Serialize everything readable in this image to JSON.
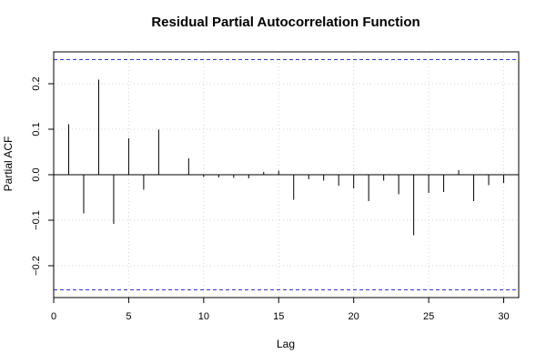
{
  "chart_data": {
    "type": "bar",
    "title": "Residual Partial Autocorrelation Function",
    "xlabel": "Lag",
    "ylabel": "Partial ACF",
    "xlim": [
      0,
      31
    ],
    "ylim": [
      -0.27,
      0.27
    ],
    "xticks": [
      0,
      5,
      10,
      15,
      20,
      25,
      30
    ],
    "yticks": [
      -0.2,
      -0.1,
      0.0,
      0.1,
      0.2
    ],
    "xtick_labels": [
      "0",
      "5",
      "10",
      "15",
      "20",
      "25",
      "30"
    ],
    "ytick_labels": [
      "−0.2",
      "−0.1",
      "0.0",
      "0.1",
      "0.2"
    ],
    "grid": true,
    "confidence_bounds": [
      0.253,
      -0.253
    ],
    "bound_color": "#3333cc",
    "lags": [
      1,
      2,
      3,
      4,
      5,
      6,
      7,
      8,
      9,
      10,
      11,
      12,
      13,
      14,
      15,
      16,
      17,
      18,
      19,
      20,
      21,
      22,
      23,
      24,
      25,
      26,
      27,
      28,
      29,
      30
    ],
    "values": [
      0.111,
      -0.085,
      0.209,
      -0.108,
      0.08,
      -0.033,
      0.099,
      0.001,
      0.036,
      -0.005,
      -0.006,
      -0.007,
      -0.008,
      0.006,
      0.009,
      -0.055,
      -0.01,
      -0.013,
      -0.024,
      -0.03,
      -0.058,
      -0.013,
      -0.043,
      -0.133,
      -0.04,
      -0.038,
      0.01,
      -0.058,
      -0.023,
      -0.018
    ]
  }
}
